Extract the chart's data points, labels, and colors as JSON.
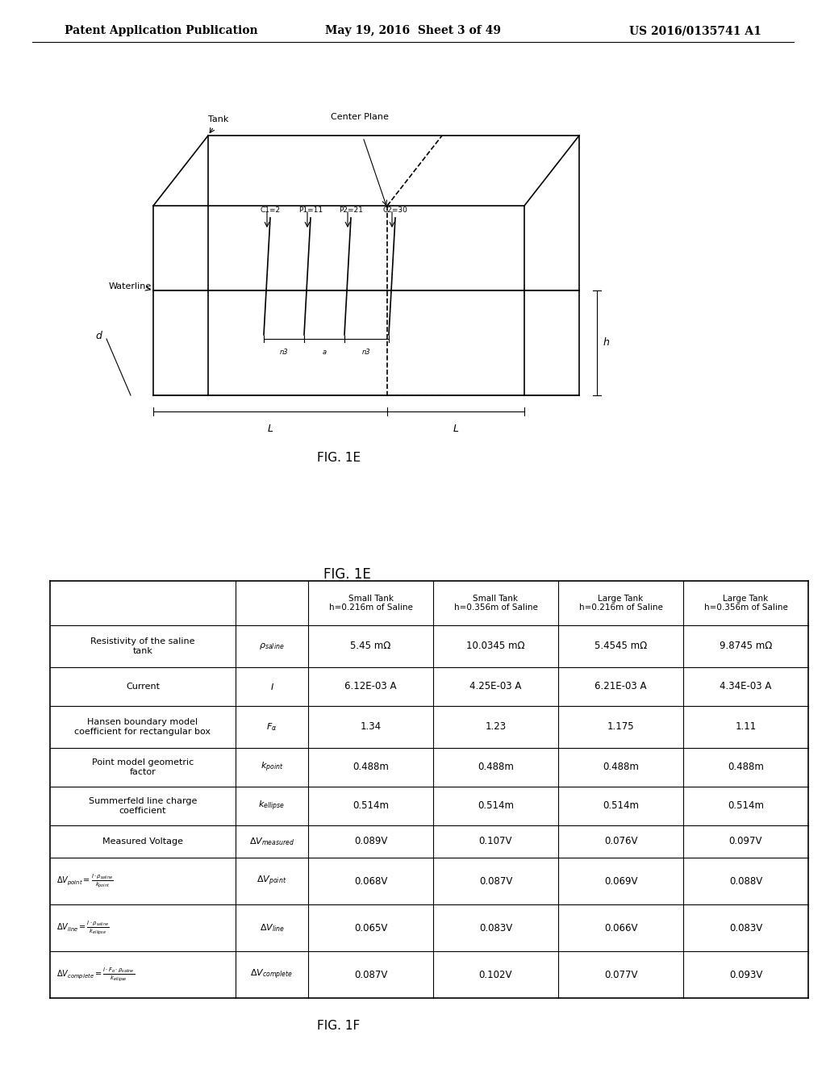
{
  "header_left": "Patent Application Publication",
  "header_mid": "May 19, 2016  Sheet 3 of 49",
  "header_right": "US 2016/0135741 A1",
  "fig1e_label": "FIG. 1E",
  "fig1f_label": "FIG. 1F",
  "table_headers": [
    "",
    "",
    "Small Tank\nh=0.216m of Saline",
    "Small Tank\nh=0.356m of Saline",
    "Large Tank\nh=0.216m of Saline",
    "Large Tank\nh=0.356m of Saline"
  ],
  "table_rows": [
    [
      "Resistivity of the saline\ntank",
      "rho_saline",
      "5.45 mΩ",
      "10.0345 mΩ",
      "5.4545 mΩ",
      "9.8745 mΩ"
    ],
    [
      "Current",
      "I",
      "6.12E-03 A",
      "4.25E-03 A",
      "6.21E-03 A",
      "4.34E-03 A"
    ],
    [
      "Hansen boundary model\ncoefficient for rectangular box",
      "F_alpha",
      "1.34",
      "1.23",
      "1.175",
      "1.11"
    ],
    [
      "Point model geometric\nfactor",
      "k_point",
      "0.488m",
      "0.488m",
      "0.488m",
      "0.488m"
    ],
    [
      "Summerfeld line charge\ncoefficient",
      "k_ellipse",
      "0.514m",
      "0.514m",
      "0.514m",
      "0.514m"
    ],
    [
      "Measured Voltage",
      "DV_measured",
      "0.089V",
      "0.107V",
      "0.076V",
      "0.097V"
    ],
    [
      "DV_point = I*rho_saline/k_point",
      "DV_point",
      "0.068V",
      "0.087V",
      "0.069V",
      "0.088V"
    ],
    [
      "DV_line = I*rho_saline/k_ellipse",
      "DV_line",
      "0.065V",
      "0.083V",
      "0.066V",
      "0.083V"
    ],
    [
      "DV_complete = I*F_alpha*rho_saline/k_ellipse",
      "DV_complete",
      "0.087V",
      "0.102V",
      "0.077V",
      "0.093V"
    ]
  ],
  "bg_color": "#ffffff",
  "text_color": "#000000",
  "line_color": "#000000"
}
